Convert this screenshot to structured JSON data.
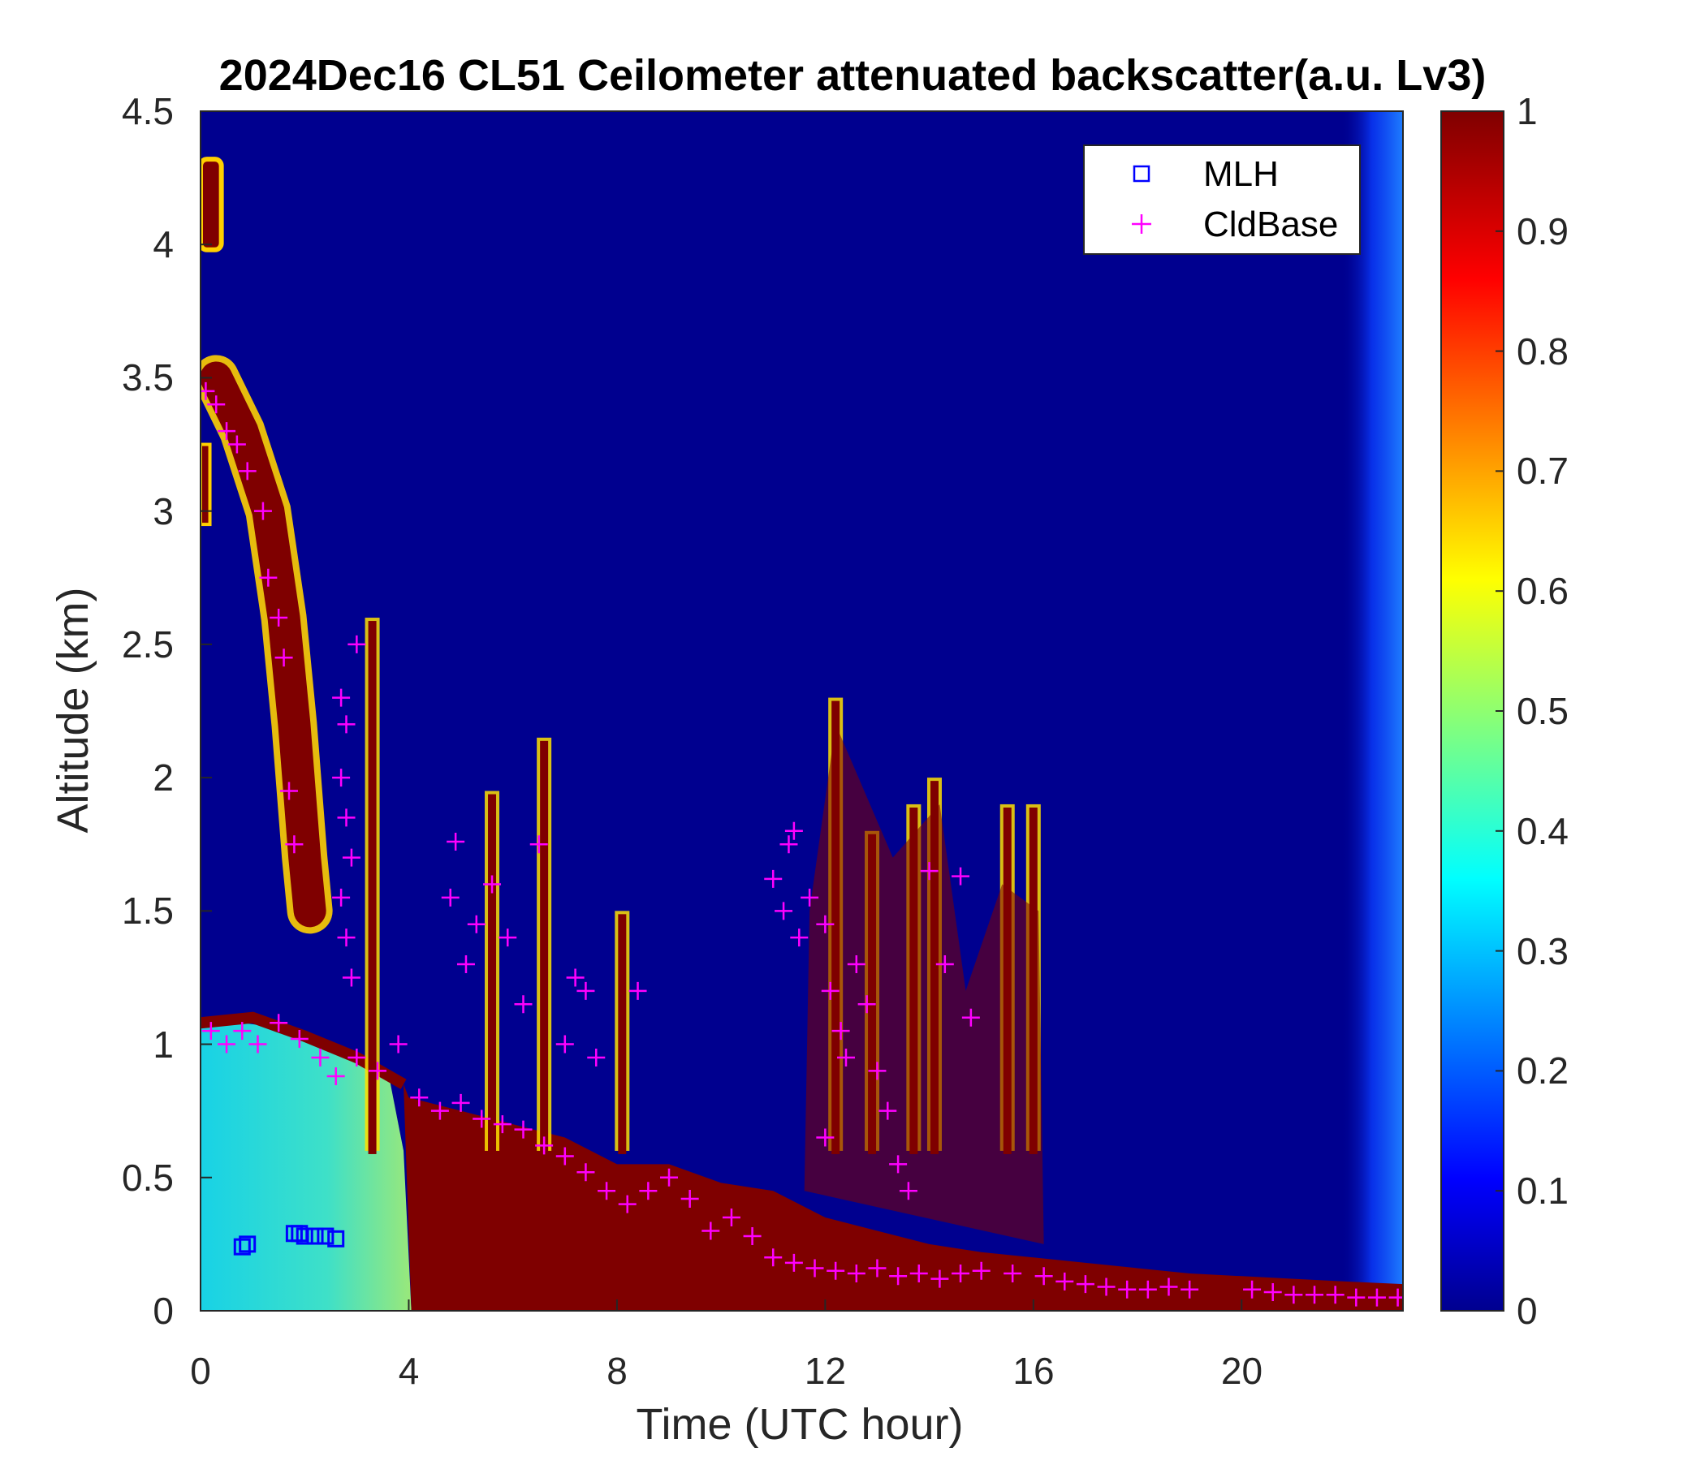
{
  "chart_data": {
    "type": "heatmap",
    "title": "2024Dec16 CL51 Ceilometer attenuated backscatter(a.u. Lv3)",
    "xlabel": "Time (UTC hour)",
    "ylabel": "Altitude (km)",
    "xlim": [
      0,
      23.1
    ],
    "ylim": [
      0,
      4.5
    ],
    "xticks": [
      "0",
      "4",
      "8",
      "12",
      "16",
      "20"
    ],
    "yticks": [
      "0",
      "0.5",
      "1",
      "1.5",
      "2",
      "2.5",
      "3",
      "3.5",
      "4",
      "4.5"
    ],
    "colorbar": {
      "colormap": "jet",
      "range": [
        0,
        1
      ],
      "ticks": [
        "0",
        "0.1",
        "0.2",
        "0.3",
        "0.4",
        "0.5",
        "0.6",
        "0.7",
        "0.8",
        "0.9",
        "1"
      ]
    },
    "legend": {
      "position": "top-right",
      "entries": [
        {
          "label": "MLH",
          "marker": "square",
          "color": "#0000ff"
        },
        {
          "label": "CldBase",
          "marker": "plus",
          "color": "#ff00ff"
        }
      ]
    },
    "colors": {
      "background": "#00008f",
      "aerosol_layer": "#7f0000",
      "low_signal": "#40e0d0",
      "mlh": "#0000ff",
      "cldbase": "#ff00ff"
    },
    "features": {
      "boundary_layer_top_km": [
        [
          0,
          1.1
        ],
        [
          1,
          1.1
        ],
        [
          2,
          1.05
        ],
        [
          3,
          0.95
        ],
        [
          4,
          0.8
        ],
        [
          5,
          0.75
        ],
        [
          6,
          0.7
        ],
        [
          7,
          0.65
        ],
        [
          8,
          0.55
        ],
        [
          9,
          0.55
        ],
        [
          10,
          0.48
        ],
        [
          11,
          0.45
        ],
        [
          12,
          0.35
        ],
        [
          13,
          0.3
        ],
        [
          14,
          0.25
        ],
        [
          15,
          0.22
        ],
        [
          16,
          0.2
        ],
        [
          17,
          0.18
        ],
        [
          18,
          0.16
        ],
        [
          19,
          0.14
        ],
        [
          20,
          0.13
        ],
        [
          21,
          0.12
        ],
        [
          22,
          0.11
        ],
        [
          23.1,
          0.1
        ]
      ],
      "elevated_aerosol_band_km": [
        [
          0.3,
          3.5
        ],
        [
          0.8,
          3.3
        ],
        [
          1.3,
          3.0
        ],
        [
          1.6,
          2.6
        ],
        [
          1.8,
          2.2
        ],
        [
          2.0,
          1.7
        ],
        [
          2.1,
          1.5
        ]
      ],
      "convective_plumes": [
        {
          "x": 3.3,
          "top": 2.6
        },
        {
          "x": 5.6,
          "top": 1.95
        },
        {
          "x": 6.6,
          "top": 2.15
        },
        {
          "x": 8.1,
          "top": 1.5
        },
        {
          "x": 12.2,
          "top": 2.3
        },
        {
          "x": 12.9,
          "top": 1.8
        },
        {
          "x": 13.7,
          "top": 1.9
        },
        {
          "x": 14.1,
          "top": 2.0
        },
        {
          "x": 15.5,
          "top": 1.9
        },
        {
          "x": 16.0,
          "top": 1.9
        }
      ]
    },
    "series": [
      {
        "name": "MLH",
        "points": [
          [
            0.8,
            0.24
          ],
          [
            0.9,
            0.25
          ],
          [
            1.8,
            0.29
          ],
          [
            1.9,
            0.29
          ],
          [
            2.0,
            0.28
          ],
          [
            2.2,
            0.28
          ],
          [
            2.4,
            0.28
          ],
          [
            2.6,
            0.27
          ]
        ]
      },
      {
        "name": "CldBase",
        "points": [
          [
            0.1,
            3.45
          ],
          [
            0.3,
            3.4
          ],
          [
            0.5,
            3.3
          ],
          [
            0.7,
            3.25
          ],
          [
            0.9,
            3.15
          ],
          [
            1.2,
            3.0
          ],
          [
            1.3,
            2.75
          ],
          [
            1.5,
            2.6
          ],
          [
            1.6,
            2.45
          ],
          [
            1.7,
            1.95
          ],
          [
            1.8,
            1.75
          ],
          [
            2.7,
            2.3
          ],
          [
            2.8,
            2.2
          ],
          [
            2.7,
            2.0
          ],
          [
            2.8,
            1.85
          ],
          [
            2.9,
            1.7
          ],
          [
            2.7,
            1.55
          ],
          [
            2.8,
            1.4
          ],
          [
            2.9,
            1.25
          ],
          [
            3.0,
            2.5
          ],
          [
            0.2,
            1.05
          ],
          [
            0.5,
            1.0
          ],
          [
            0.8,
            1.05
          ],
          [
            1.1,
            1.0
          ],
          [
            1.5,
            1.08
          ],
          [
            1.9,
            1.02
          ],
          [
            2.3,
            0.95
          ],
          [
            2.6,
            0.88
          ],
          [
            3.0,
            0.95
          ],
          [
            3.4,
            0.9
          ],
          [
            3.8,
            1.0
          ],
          [
            4.2,
            0.8
          ],
          [
            4.6,
            0.75
          ],
          [
            5.0,
            0.78
          ],
          [
            5.4,
            0.72
          ],
          [
            5.8,
            0.7
          ],
          [
            6.2,
            0.68
          ],
          [
            6.6,
            0.62
          ],
          [
            7.0,
            0.58
          ],
          [
            7.4,
            0.52
          ],
          [
            7.8,
            0.45
          ],
          [
            8.2,
            0.4
          ],
          [
            8.6,
            0.45
          ],
          [
            9.0,
            0.5
          ],
          [
            9.4,
            0.42
          ],
          [
            9.8,
            0.3
          ],
          [
            10.2,
            0.35
          ],
          [
            10.6,
            0.28
          ],
          [
            11.0,
            0.2
          ],
          [
            11.4,
            0.18
          ],
          [
            11.8,
            0.16
          ],
          [
            12.2,
            0.15
          ],
          [
            12.6,
            0.14
          ],
          [
            13.0,
            0.16
          ],
          [
            13.4,
            0.13
          ],
          [
            13.8,
            0.14
          ],
          [
            14.2,
            0.12
          ],
          [
            14.6,
            0.14
          ],
          [
            15.0,
            0.15
          ],
          [
            15.6,
            0.14
          ],
          [
            16.2,
            0.13
          ],
          [
            16.6,
            0.11
          ],
          [
            17.0,
            0.1
          ],
          [
            17.4,
            0.09
          ],
          [
            17.8,
            0.08
          ],
          [
            18.2,
            0.08
          ],
          [
            18.6,
            0.09
          ],
          [
            19.0,
            0.08
          ],
          [
            20.2,
            0.08
          ],
          [
            20.6,
            0.07
          ],
          [
            21.0,
            0.06
          ],
          [
            21.4,
            0.06
          ],
          [
            21.8,
            0.06
          ],
          [
            22.2,
            0.05
          ],
          [
            22.6,
            0.05
          ],
          [
            23.0,
            0.05
          ],
          [
            4.8,
            1.55
          ],
          [
            5.1,
            1.3
          ],
          [
            5.3,
            1.45
          ],
          [
            5.6,
            1.6
          ],
          [
            5.9,
            1.4
          ],
          [
            6.2,
            1.15
          ],
          [
            6.5,
            1.75
          ],
          [
            7.0,
            1.0
          ],
          [
            7.2,
            1.25
          ],
          [
            7.4,
            1.2
          ],
          [
            7.6,
            0.95
          ],
          [
            8.4,
            1.2
          ],
          [
            4.9,
            1.76
          ],
          [
            11.0,
            1.62
          ],
          [
            11.2,
            1.5
          ],
          [
            11.4,
            1.8
          ],
          [
            11.5,
            1.4
          ],
          [
            11.7,
            1.55
          ],
          [
            11.3,
            1.75
          ],
          [
            12.0,
            1.45
          ],
          [
            12.1,
            1.2
          ],
          [
            12.3,
            1.05
          ],
          [
            12.4,
            0.95
          ],
          [
            12.0,
            0.65
          ],
          [
            12.6,
            1.3
          ],
          [
            12.8,
            1.15
          ],
          [
            13.0,
            0.9
          ],
          [
            13.2,
            0.75
          ],
          [
            13.4,
            0.55
          ],
          [
            13.6,
            0.45
          ],
          [
            14.0,
            1.65
          ],
          [
            14.3,
            1.3
          ],
          [
            14.6,
            1.63
          ],
          [
            14.8,
            1.1
          ]
        ]
      }
    ]
  }
}
